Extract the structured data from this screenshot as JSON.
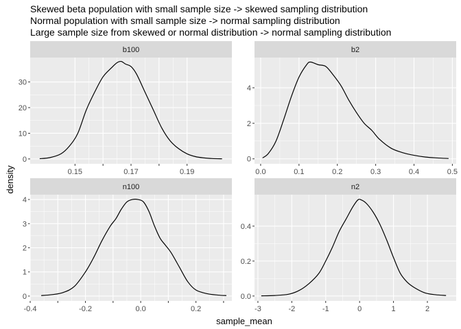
{
  "chart_data": {
    "type": "line",
    "title_lines": [
      "Skewed beta population with small sample size -> skewed sampling distribution",
      "Normal population with small sample size -> normal sampling distribution",
      "Large sample size from skewed or normal distribution -> normal sampling distribution"
    ],
    "xlabel": "sample_mean",
    "ylabel": "density",
    "grid": true,
    "colors": {
      "panel_bg": "#ebebeb",
      "strip_bg": "#d9d9d9",
      "grid": "#ffffff",
      "line": "#000000"
    },
    "panels": [
      {
        "label": "b100",
        "xlim": [
          0.134,
          0.206
        ],
        "ylim": [
          -1.9,
          39.5
        ],
        "xticks": [
          0.15,
          0.16,
          0.17,
          0.18,
          0.19
        ],
        "xtick_labels": [
          "0.15",
          "",
          "0.17",
          "",
          "0.19"
        ],
        "yticks": [
          0,
          10,
          20,
          30
        ],
        "ytick_labels": [
          "0",
          "10",
          "20",
          "30"
        ],
        "x": [
          0.1374,
          0.141,
          0.145,
          0.148,
          0.151,
          0.154,
          0.157,
          0.16,
          0.163,
          0.165,
          0.1665,
          0.168,
          0.17,
          0.172,
          0.175,
          0.178,
          0.181,
          0.184,
          0.187,
          0.19,
          0.193,
          0.196,
          0.199,
          0.2025
        ],
        "y": [
          0.1,
          0.5,
          2,
          5,
          10,
          19,
          26,
          32,
          35.5,
          37.5,
          38,
          37,
          36,
          33,
          26,
          19,
          12,
          7,
          4,
          2,
          0.9,
          0.4,
          0.15,
          0.05
        ]
      },
      {
        "label": "b2",
        "xlim": [
          -0.016,
          0.51
        ],
        "ylim": [
          -0.28,
          5.7
        ],
        "xticks": [
          0.0,
          0.1,
          0.2,
          0.3,
          0.4,
          0.5
        ],
        "xtick_labels": [
          "0.0",
          "0.1",
          "0.2",
          "0.3",
          "0.4",
          "0.5"
        ],
        "yticks": [
          0,
          2,
          4
        ],
        "ytick_labels": [
          "0",
          "2",
          "4"
        ],
        "x": [
          0.005,
          0.02,
          0.04,
          0.06,
          0.08,
          0.1,
          0.12,
          0.13,
          0.15,
          0.17,
          0.19,
          0.21,
          0.23,
          0.25,
          0.27,
          0.29,
          0.31,
          0.34,
          0.37,
          0.4,
          0.43,
          0.46,
          0.49
        ],
        "y": [
          0.05,
          0.3,
          1.0,
          2.2,
          3.5,
          4.6,
          5.3,
          5.45,
          5.3,
          5.2,
          4.7,
          4.1,
          3.3,
          2.6,
          2.0,
          1.6,
          1.1,
          0.6,
          0.35,
          0.2,
          0.1,
          0.05,
          0.02
        ]
      },
      {
        "label": "n100",
        "xlim": [
          -0.4,
          0.33
        ],
        "ylim": [
          -0.2,
          4.2
        ],
        "xticks": [
          -0.4,
          -0.3,
          -0.2,
          -0.1,
          0.0,
          0.1,
          0.2,
          0.3
        ],
        "xtick_labels": [
          "-0.4",
          "",
          "-0.2",
          "",
          "0.0",
          "",
          "0.2",
          ""
        ],
        "yticks": [
          0,
          1,
          2,
          3,
          4
        ],
        "ytick_labels": [
          "0",
          "1",
          "2",
          "3",
          "4"
        ],
        "x": [
          -0.36,
          -0.32,
          -0.28,
          -0.24,
          -0.2,
          -0.17,
          -0.14,
          -0.11,
          -0.09,
          -0.07,
          -0.05,
          -0.03,
          -0.01,
          0.01,
          0.03,
          0.05,
          0.07,
          0.09,
          0.11,
          0.14,
          0.17,
          0.2,
          0.24,
          0.28,
          0.31
        ],
        "y": [
          0.02,
          0.06,
          0.15,
          0.4,
          1.0,
          1.6,
          2.3,
          2.9,
          3.2,
          3.6,
          3.9,
          4.0,
          4.0,
          3.9,
          3.5,
          2.9,
          2.4,
          2.1,
          1.8,
          1.2,
          0.6,
          0.25,
          0.1,
          0.04,
          0.02
        ]
      },
      {
        "label": "n2",
        "xlim": [
          -3.1,
          2.85
        ],
        "ylim": [
          -0.028,
          0.58
        ],
        "xticks": [
          -3,
          -2,
          -1,
          0,
          1,
          2
        ],
        "xtick_labels": [
          "-3",
          "-2",
          "-1",
          "0",
          "1",
          "2"
        ],
        "yticks": [
          0.0,
          0.2,
          0.4
        ],
        "ytick_labels": [
          "0.0",
          "0.2",
          "0.4"
        ],
        "x": [
          -2.9,
          -2.5,
          -2.1,
          -1.8,
          -1.5,
          -1.2,
          -1.0,
          -0.8,
          -0.6,
          -0.4,
          -0.2,
          -0.05,
          0.05,
          0.2,
          0.4,
          0.6,
          0.8,
          1.0,
          1.2,
          1.4,
          1.6,
          1.9,
          2.2,
          2.55
        ],
        "y": [
          0.001,
          0.003,
          0.01,
          0.03,
          0.07,
          0.13,
          0.2,
          0.28,
          0.37,
          0.44,
          0.51,
          0.55,
          0.55,
          0.53,
          0.48,
          0.41,
          0.32,
          0.22,
          0.13,
          0.08,
          0.05,
          0.02,
          0.008,
          0.003
        ]
      }
    ]
  }
}
